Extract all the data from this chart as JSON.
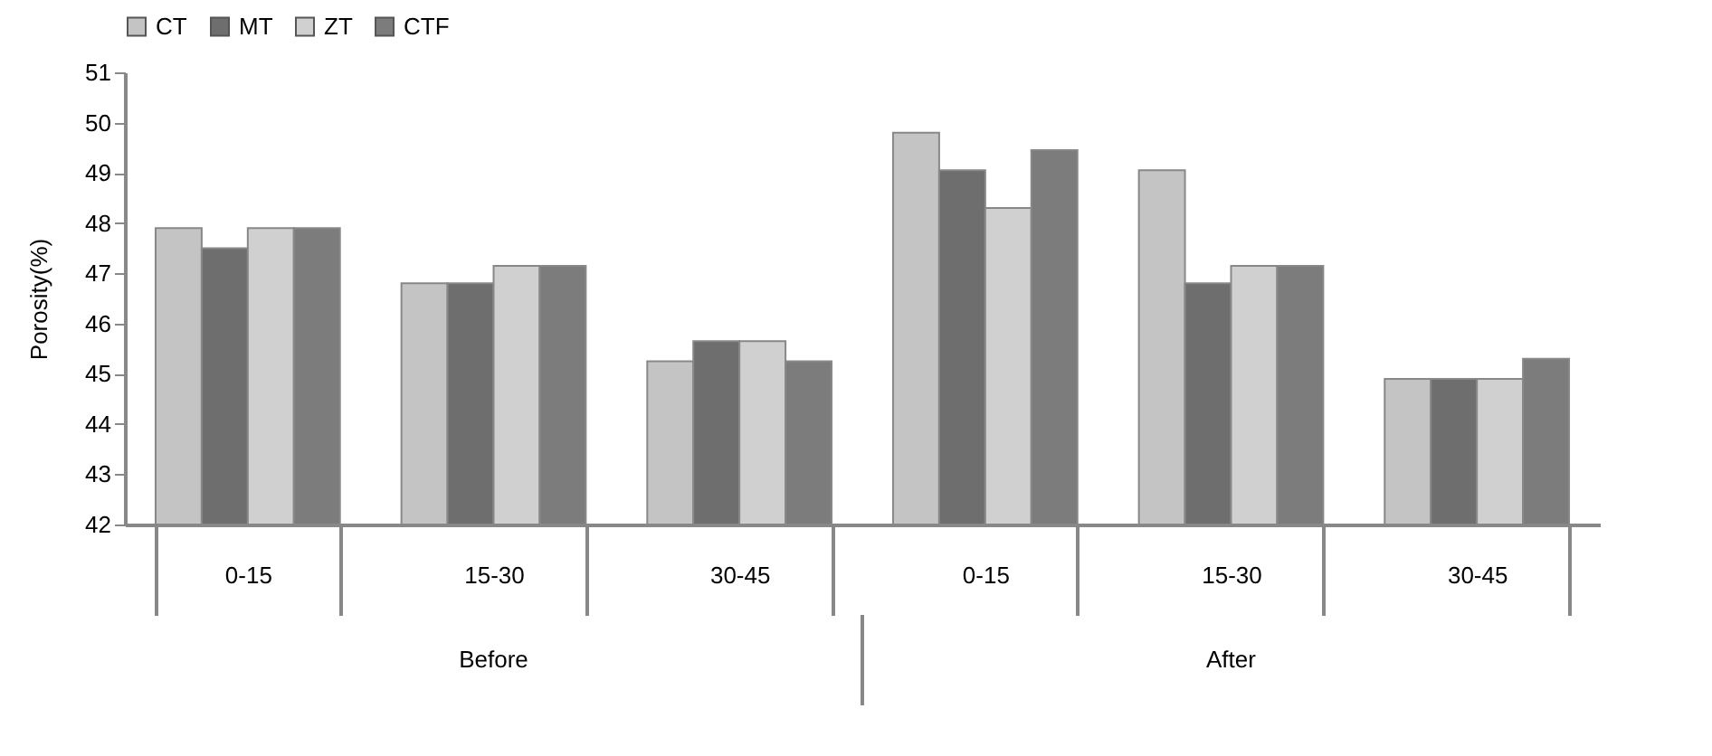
{
  "chart_data": {
    "type": "bar",
    "ylabel": "Porosity(%)",
    "categories": [
      "0-15",
      "15-30",
      "30-45",
      "0-15",
      "15-30",
      "30-45"
    ],
    "annotations": [
      "Before",
      "After"
    ],
    "ylim": [
      42,
      51
    ],
    "yticks": [
      42,
      43,
      44,
      45,
      46,
      47,
      48,
      49,
      50,
      51
    ],
    "legend": "top",
    "series": [
      {
        "name": "CT",
        "color": "#c4c4c4",
        "values": [
          47.9,
          46.8,
          45.25,
          49.8,
          49.05,
          44.9
        ]
      },
      {
        "name": "MT",
        "color": "#6e6e6e",
        "values": [
          47.5,
          46.8,
          45.65,
          49.05,
          46.8,
          44.9
        ]
      },
      {
        "name": "ZT",
        "color": "#d0d0d0",
        "values": [
          47.9,
          47.15,
          45.65,
          48.3,
          47.15,
          44.9
        ]
      },
      {
        "name": "CTF",
        "color": "#7c7c7c",
        "values": [
          47.9,
          47.15,
          45.25,
          49.45,
          47.15,
          45.3
        ]
      }
    ]
  }
}
